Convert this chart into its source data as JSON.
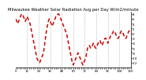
{
  "title": "Milwaukee Weather Solar Radiation Avg per Day W/m2/minute",
  "line_color": "#cc0000",
  "background_color": "#ffffff",
  "grid_color": "#999999",
  "x_values": [
    0,
    1,
    2,
    3,
    4,
    5,
    6,
    7,
    8,
    9,
    10,
    11,
    12,
    13,
    14,
    15,
    16,
    17,
    18,
    19,
    20,
    21,
    22,
    23,
    24,
    25,
    26,
    27,
    28,
    29,
    30,
    31,
    32,
    33,
    34,
    35,
    36,
    37,
    38,
    39,
    40,
    41,
    42,
    43,
    44,
    45,
    46,
    47,
    48,
    49,
    50,
    51,
    52,
    53,
    54,
    55,
    56,
    57,
    58,
    59,
    60,
    61,
    62,
    63,
    64,
    65,
    66,
    67,
    68,
    69,
    70,
    71,
    72,
    73,
    74,
    75,
    76,
    77,
    78,
    79,
    80,
    81,
    82,
    83,
    84,
    85,
    86,
    87,
    88,
    89,
    90,
    91,
    92,
    93,
    94,
    95,
    96,
    97,
    98,
    99,
    100,
    101,
    102,
    103,
    104,
    105,
    106,
    107,
    108,
    109,
    110,
    111,
    112,
    113,
    114,
    115,
    116,
    117,
    118,
    119,
    120
  ],
  "y_values": [
    6,
    5,
    4,
    5,
    6,
    7,
    8,
    8,
    7,
    6,
    5,
    6,
    7,
    6,
    5,
    4,
    2,
    0,
    -2,
    -4,
    -6,
    -8,
    -10,
    -11,
    -12,
    -12,
    -11,
    -10,
    -9,
    -8,
    -5,
    -2,
    1,
    3,
    5,
    6,
    5,
    4,
    3,
    4,
    5,
    6,
    7,
    7,
    8,
    8,
    7,
    6,
    5,
    4,
    3,
    2,
    1,
    0,
    -2,
    -4,
    -6,
    -8,
    -10,
    -12,
    -13,
    -12,
    -11,
    -10,
    -9,
    -8,
    -9,
    -10,
    -11,
    -12,
    -13,
    -12,
    -11,
    -10,
    -8,
    -6,
    -5,
    -5,
    -6,
    -6,
    -5,
    -4,
    -5,
    -6,
    -6,
    -5,
    -4,
    -3,
    -3,
    -4,
    -5,
    -4,
    -3,
    -2,
    -2,
    -3,
    -4,
    -3,
    -2,
    -1,
    0,
    0,
    1,
    1,
    0,
    -1,
    -2,
    -2,
    -1,
    0,
    1,
    1,
    0,
    -1,
    -2,
    -2,
    -1,
    0,
    1,
    1,
    0
  ],
  "ylim": [
    -14,
    9
  ],
  "xlim": [
    0,
    120
  ],
  "ytick_values": [
    -12,
    -10,
    -8,
    -6,
    -4,
    -2,
    0,
    2,
    4,
    6,
    8
  ],
  "ytick_labels": [
    "-12",
    "-10",
    "-8",
    "-6",
    "-4",
    "-2",
    "0",
    "2",
    "4",
    "6",
    "8"
  ],
  "grid_x_positions": [
    12,
    24,
    36,
    48,
    60,
    72,
    84,
    96,
    108
  ],
  "title_fontsize": 3.8,
  "tick_fontsize": 2.8,
  "linewidth": 1.1,
  "dash_on": 3,
  "dash_off": 2
}
